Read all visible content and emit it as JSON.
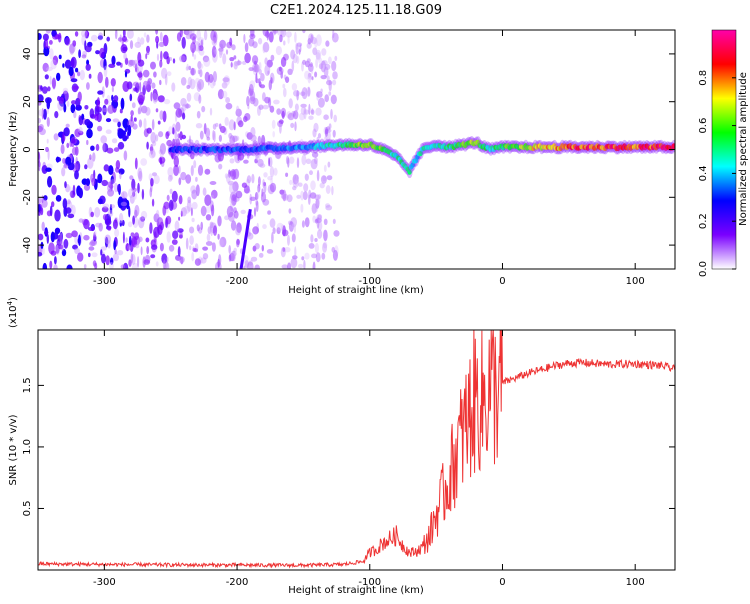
{
  "title": "C2E1.2024.125.11.18.G09",
  "chart_data": [
    {
      "type": "heatmap",
      "xlabel": "Height of straight line (km)",
      "ylabel": "Frequency (Hz)",
      "xlim": [
        -350,
        130
      ],
      "ylim": [
        -50,
        50
      ],
      "x_ticks": [
        -300,
        -200,
        -100,
        0,
        100
      ],
      "y_ticks": [
        -40,
        -20,
        0,
        20,
        40
      ],
      "colorbar": {
        "label": "Normalized spectral amplitude",
        "range": [
          0.0,
          1.0
        ],
        "ticks": [
          "0.0",
          "0.2",
          "0.4",
          "0.6",
          "0.8"
        ],
        "colormap": [
          "#ffffff",
          "#7a00ff",
          "#0000ff",
          "#00ffff",
          "#00ff00",
          "#ffff00",
          "#ff0000",
          "#ff00aa"
        ]
      },
      "signal_trace": {
        "x": [
          -250,
          -200,
          -150,
          -120,
          -100,
          -90,
          -80,
          -75,
          -70,
          -65,
          -60,
          -50,
          -40,
          -30,
          -20,
          -10,
          0,
          50,
          100,
          130
        ],
        "frequency": [
          0,
          0,
          1,
          2,
          2,
          0,
          -3,
          -6,
          -9,
          -4,
          0,
          2,
          1,
          2,
          3,
          0,
          1,
          1,
          1,
          1
        ],
        "amplitude": [
          0.35,
          0.35,
          0.4,
          0.55,
          0.75,
          0.6,
          0.5,
          0.55,
          0.5,
          0.45,
          0.5,
          0.5,
          0.55,
          0.65,
          0.7,
          0.5,
          0.6,
          0.9,
          0.9,
          0.95
        ]
      }
    },
    {
      "type": "line",
      "xlabel": "Height of straight line (km)",
      "ylabel": "SNR (10 * v/v)",
      "scale_note": "(x10",
      "scale_exp": "4",
      "scale_close": ")",
      "xlim": [
        -350,
        130
      ],
      "ylim": [
        0,
        19500
      ],
      "x_ticks": [
        -300,
        -200,
        -100,
        0,
        100
      ],
      "y_ticks": [
        "0.5",
        "1.0",
        "1.5"
      ],
      "y_tick_values": [
        5000,
        10000,
        15000
      ],
      "color": "#ee3333",
      "series": [
        {
          "x": [
            -350,
            -300,
            -250,
            -200,
            -150,
            -120,
            -105,
            -100,
            -95,
            -90,
            -85,
            -80,
            -75,
            -70,
            -65,
            -60,
            -55,
            -50,
            -45,
            -40,
            -35,
            -30,
            -25,
            -20,
            -15,
            -10,
            -5,
            0,
            10,
            20,
            30,
            40,
            50,
            60,
            80,
            100,
            120,
            130
          ],
          "values": [
            500,
            450,
            420,
            400,
            380,
            450,
            700,
            1400,
            1700,
            2200,
            2500,
            2800,
            2000,
            1400,
            1500,
            1900,
            2800,
            4500,
            6000,
            7500,
            9500,
            11000,
            12500,
            14000,
            13500,
            15000,
            14500,
            15200,
            15600,
            16000,
            16300,
            16600,
            16800,
            16850,
            16700,
            16750,
            16600,
            16300
          ]
        }
      ]
    }
  ]
}
